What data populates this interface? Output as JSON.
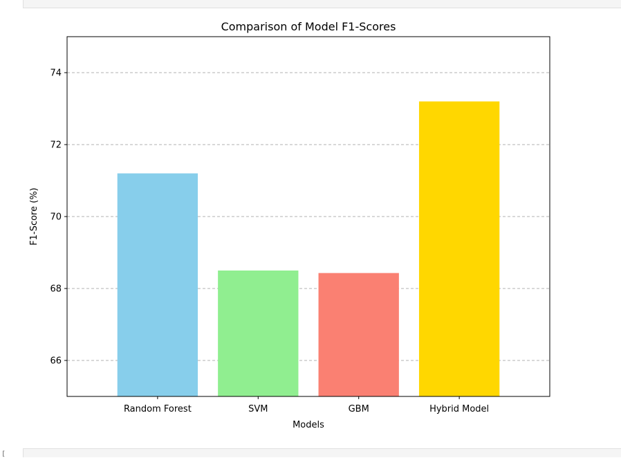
{
  "notebook": {
    "prompt_glyph": "["
  },
  "chart_data": {
    "type": "bar",
    "title": "Comparison of Model F1-Scores",
    "xlabel": "Models",
    "ylabel": "F1-Score (%)",
    "categories": [
      "Random Forest",
      "SVM",
      "GBM",
      "Hybrid Model"
    ],
    "values": [
      71.2,
      68.5,
      68.43,
      73.2
    ],
    "colors": [
      "#87ceeb",
      "#90ee90",
      "#fa8072",
      "#ffd700"
    ],
    "ylim": [
      65,
      75
    ],
    "yticks": [
      66,
      68,
      70,
      72,
      74
    ],
    "ytick_labels": [
      "66",
      "68",
      "70",
      "72",
      "74"
    ],
    "grid": {
      "axis": "y",
      "style": "dashed"
    },
    "legend": "none"
  }
}
